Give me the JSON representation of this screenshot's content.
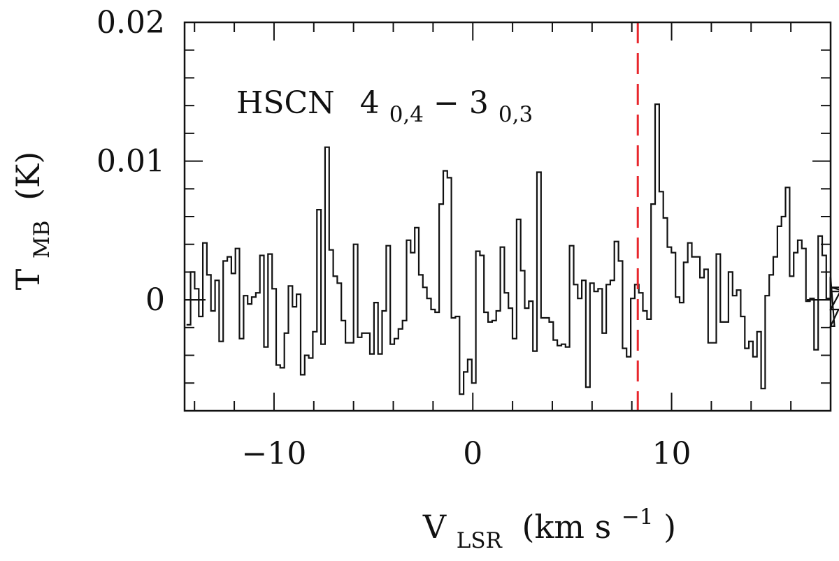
{
  "chart_data": {
    "type": "line",
    "style": "step",
    "annotation": {
      "molecule": "HSCN",
      "upper": "4",
      "upper_sub": "0,4",
      "dash": "−",
      "lower": "3",
      "lower_sub": "0,3"
    },
    "xlabel": {
      "main": "V",
      "sub": "LSR",
      "unit_pre": "(km s",
      "unit_sup": "−1",
      "unit_post": ")"
    },
    "ylabel": {
      "main": "T",
      "sub": "MB",
      "unit": "(K)"
    },
    "xlim": [
      -14.5,
      18.0
    ],
    "ylim": [
      -0.008,
      0.02
    ],
    "x_ticks": [
      {
        "value": -10,
        "label": "−10"
      },
      {
        "value": 0,
        "label": "0"
      },
      {
        "value": 10,
        "label": "10"
      }
    ],
    "x_minor_step": 2,
    "y_ticks": [
      {
        "value": 0,
        "label": "0"
      },
      {
        "value": 0.01,
        "label": "0.01"
      },
      {
        "value": 0.02,
        "label": "0.02"
      }
    ],
    "y_minor_step": 0.002,
    "grid": false,
    "vline": {
      "x": 8.3,
      "color": "#e8262c",
      "style": "dashed"
    },
    "line_color": "#111111",
    "series": [
      {
        "x_start": -14.3,
        "x_step": 0.205,
        "values": [
          -0.0018,
          0.002,
          0.0008,
          -0.0012,
          0.0041,
          0.0018,
          -0.0008,
          0.0014,
          -0.003,
          0.0028,
          0.0031,
          0.0019,
          0.0037,
          -0.0028,
          0.0003,
          -0.0003,
          0.0002,
          0.0005,
          0.0032,
          -0.0034,
          0.0033,
          0.0008,
          -0.0047,
          -0.0049,
          -0.0024,
          0.001,
          -0.0005,
          0.0004,
          -0.0054,
          -0.004,
          -0.0042,
          -0.0023,
          0.0065,
          -0.0032,
          0.011,
          0.0036,
          0.0017,
          0.0012,
          -0.0015,
          -0.0031,
          -0.0031,
          0.004,
          -0.0027,
          -0.0024,
          -0.0024,
          -0.0039,
          -0.0002,
          -0.0039,
          -0.0008,
          0.0039,
          -0.0032,
          -0.0028,
          -0.0021,
          -0.0015,
          0.0043,
          0.0034,
          0.0052,
          0.0018,
          0.0009,
          0.0001,
          -0.0007,
          -0.0009,
          0.0069,
          0.0093,
          0.0088,
          -0.0013,
          -0.0012,
          -0.0068,
          -0.0052,
          -0.0043,
          -0.006,
          0.0035,
          0.0032,
          -0.0009,
          -0.0016,
          -0.0015,
          -0.0008,
          0.0038,
          0.0005,
          -0.0006,
          -0.0028,
          0.0058,
          0.0021,
          -0.0006,
          -0.0001,
          -0.0037,
          0.0092,
          -0.0013,
          -0.0013,
          -0.0016,
          -0.0029,
          -0.0033,
          -0.0032,
          -0.0034,
          0.0039,
          0.0011,
          0.0001,
          0.0014,
          -0.0063,
          0.0012,
          0.0006,
          0.0008,
          -0.0024,
          0.0011,
          0.0014,
          0.0042,
          0.0028,
          -0.0035,
          -0.0041,
          0.0001,
          0.0011,
          0.0005,
          -0.0008,
          -0.0014,
          0.0069,
          0.0141,
          0.0078,
          0.0059,
          0.0038,
          0.0034,
          0.0002,
          -0.0002,
          0.0027,
          0.0041,
          0.0031,
          0.0031,
          0.0016,
          0.0022,
          -0.0031,
          -0.0031,
          0.0033,
          -0.0016,
          -0.0016,
          0.002,
          0.0003,
          0.0007,
          -0.0012,
          -0.0035,
          -0.003,
          -0.0041,
          -0.0023,
          -0.0064,
          0.0003,
          0.0018,
          0.0031,
          0.0053,
          0.006,
          0.0081,
          0.0017,
          0.0034,
          0.0043,
          0.0037,
          -0.0001,
          0.0001,
          -0.0036,
          0.0046,
          0.0032,
          0.0001,
          0.0016,
          -0.0019,
          -0.0007,
          0.0009,
          0.0006
        ]
      }
    ]
  }
}
